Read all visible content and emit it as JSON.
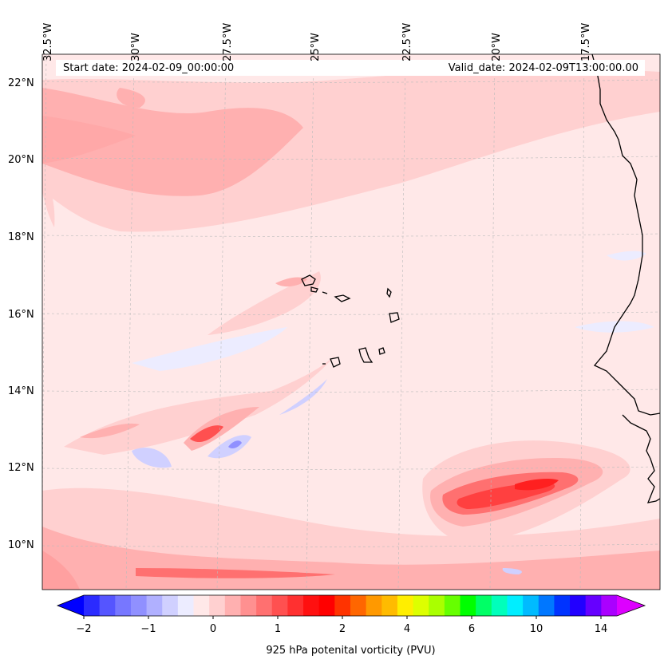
{
  "header": {
    "start_date": "Start date: 2024-02-09_00:00:00",
    "valid_date": "Valid_date: 2024-02-09T13:00:00.00"
  },
  "axes": {
    "lon_labels": [
      "32.5°W",
      "30°W",
      "27.5°W",
      "25°W",
      "22.5°W",
      "20°W",
      "17.5°W"
    ],
    "lat_labels": [
      "22°N",
      "20°N",
      "18°N",
      "16°N",
      "14°N",
      "12°N",
      "10°N"
    ]
  },
  "colorbar": {
    "label": "925 hPa potenital vorticity (PVU)",
    "tick_labels": [
      "−2",
      "−1",
      "0",
      "1",
      "2",
      "4",
      "6",
      "10",
      "14"
    ],
    "colors": [
      "#0000ff",
      "#2b2bff",
      "#5555ff",
      "#7777ff",
      "#9090ff",
      "#b0b0ff",
      "#d0d0ff",
      "#ececff",
      "#ffe8e8",
      "#ffd0d0",
      "#ffb0b0",
      "#ff9090",
      "#ff7070",
      "#ff5050",
      "#ff3030",
      "#ff1010",
      "#ff0000",
      "#ff3300",
      "#ff6600",
      "#ff9900",
      "#ffbb00",
      "#ffee00",
      "#ddff00",
      "#aaff00",
      "#66ff00",
      "#00ff00",
      "#00ff66",
      "#00ffbb",
      "#00eeff",
      "#00bbff",
      "#0077ff",
      "#0033ff",
      "#2200ff",
      "#6600ff",
      "#aa00ff",
      "#dd00ff"
    ]
  },
  "colors": {
    "background_pv": "#ffe8e8",
    "coastline": "#000000"
  }
}
